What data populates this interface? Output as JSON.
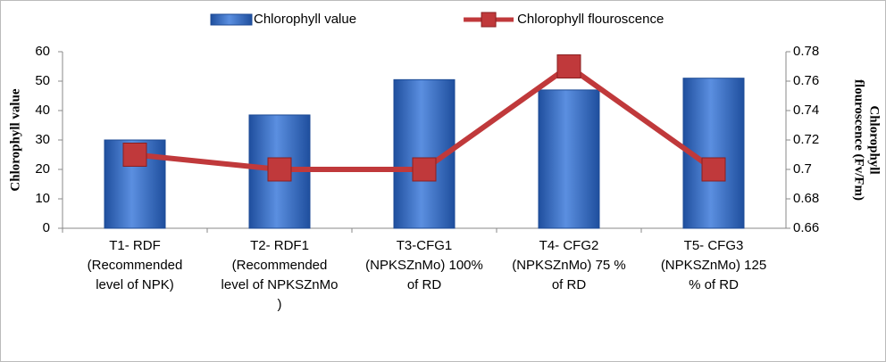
{
  "chart_data": {
    "type": "bar",
    "categories": [
      [
        "T1- RDF",
        "(Recommended",
        "level of NPK)"
      ],
      [
        "T2- RDF1",
        "(Recommended",
        "level of NPKSZnMo",
        ")"
      ],
      [
        "T3-CFG1",
        "(NPKSZnMo) 100%",
        "of RD"
      ],
      [
        "T4- CFG2",
        "(NPKSZnMo) 75 %",
        "of RD"
      ],
      [
        "T5- CFG3",
        "(NPKSZnMo) 125",
        "% of RD"
      ]
    ],
    "ylabel": "Chlorophyll value",
    "y2label": [
      "Chlorophyll",
      "flouroscence (Fv/Fm)"
    ],
    "series": [
      {
        "name": "Chlorophyll value",
        "type": "bar",
        "color": "#2e63b8",
        "values": [
          30,
          38.5,
          50.5,
          47,
          51
        ]
      },
      {
        "name": "Chlorophyll flouroscence",
        "type": "line",
        "color": "#c0393b",
        "axis": "y2",
        "values": [
          0.71,
          0.7,
          0.7,
          0.77,
          0.7
        ]
      }
    ],
    "ylim": [
      0,
      60
    ],
    "yticks": [
      0,
      10,
      20,
      30,
      40,
      50,
      60
    ],
    "y2lim": [
      0.66,
      0.78
    ],
    "y2ticks": [
      0.66,
      0.68,
      0.7,
      0.72,
      0.74,
      0.76,
      0.78
    ],
    "legend": "top"
  }
}
